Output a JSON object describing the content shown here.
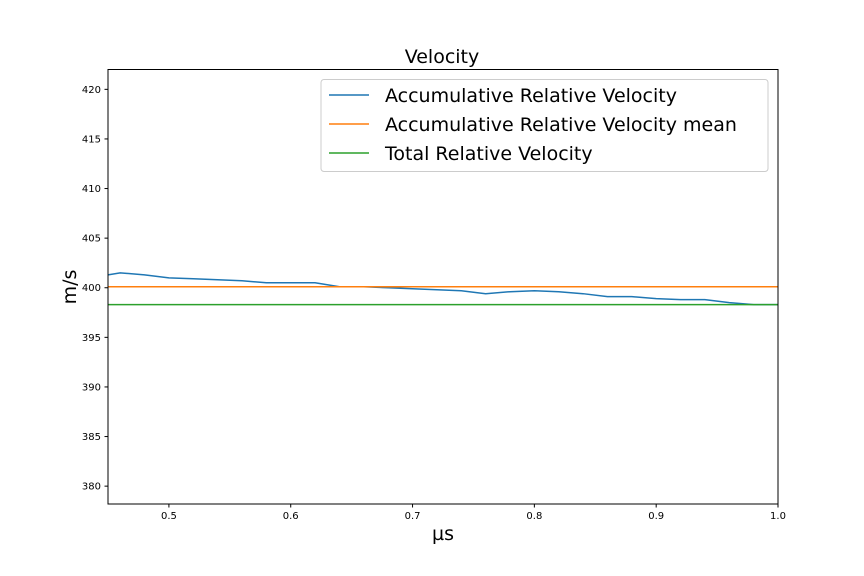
{
  "chart_data": {
    "type": "line",
    "title": "Velocity",
    "xlabel": "µs",
    "ylabel": "m/s",
    "xlim": [
      0.45,
      1.0
    ],
    "ylim": [
      378.2,
      422.0
    ],
    "xticks": [
      "0.5",
      "0.6",
      "0.7",
      "0.8",
      "0.9",
      "1.0"
    ],
    "yticks": [
      "380",
      "385",
      "390",
      "395",
      "400",
      "405",
      "410",
      "415",
      "420"
    ],
    "grid": false,
    "legend_position": "top-right",
    "series": [
      {
        "name": "Accumulative Relative Velocity",
        "color": "#1f77b4",
        "x": [
          0.45,
          0.46,
          0.48,
          0.5,
          0.52,
          0.54,
          0.56,
          0.58,
          0.6,
          0.62,
          0.64,
          0.66,
          0.68,
          0.7,
          0.72,
          0.74,
          0.76,
          0.78,
          0.8,
          0.82,
          0.84,
          0.86,
          0.88,
          0.9,
          0.92,
          0.94,
          0.96,
          0.98,
          1.0
        ],
        "values": [
          401.3,
          401.5,
          401.3,
          401.0,
          400.9,
          400.8,
          400.7,
          400.5,
          400.5,
          400.5,
          400.1,
          400.1,
          400.0,
          399.9,
          399.8,
          399.7,
          399.4,
          399.6,
          399.7,
          399.6,
          399.4,
          399.1,
          399.1,
          398.9,
          398.8,
          398.8,
          398.5,
          398.3,
          398.3
        ]
      },
      {
        "name": "Accumulative Relative Velocity mean",
        "color": "#ff7f0e",
        "x": [
          0.45,
          1.0
        ],
        "values": [
          400.1,
          400.1
        ]
      },
      {
        "name": "Total Relative Velocity",
        "color": "#2ca02c",
        "x": [
          0.45,
          1.0
        ],
        "values": [
          398.3,
          398.3
        ]
      }
    ]
  }
}
